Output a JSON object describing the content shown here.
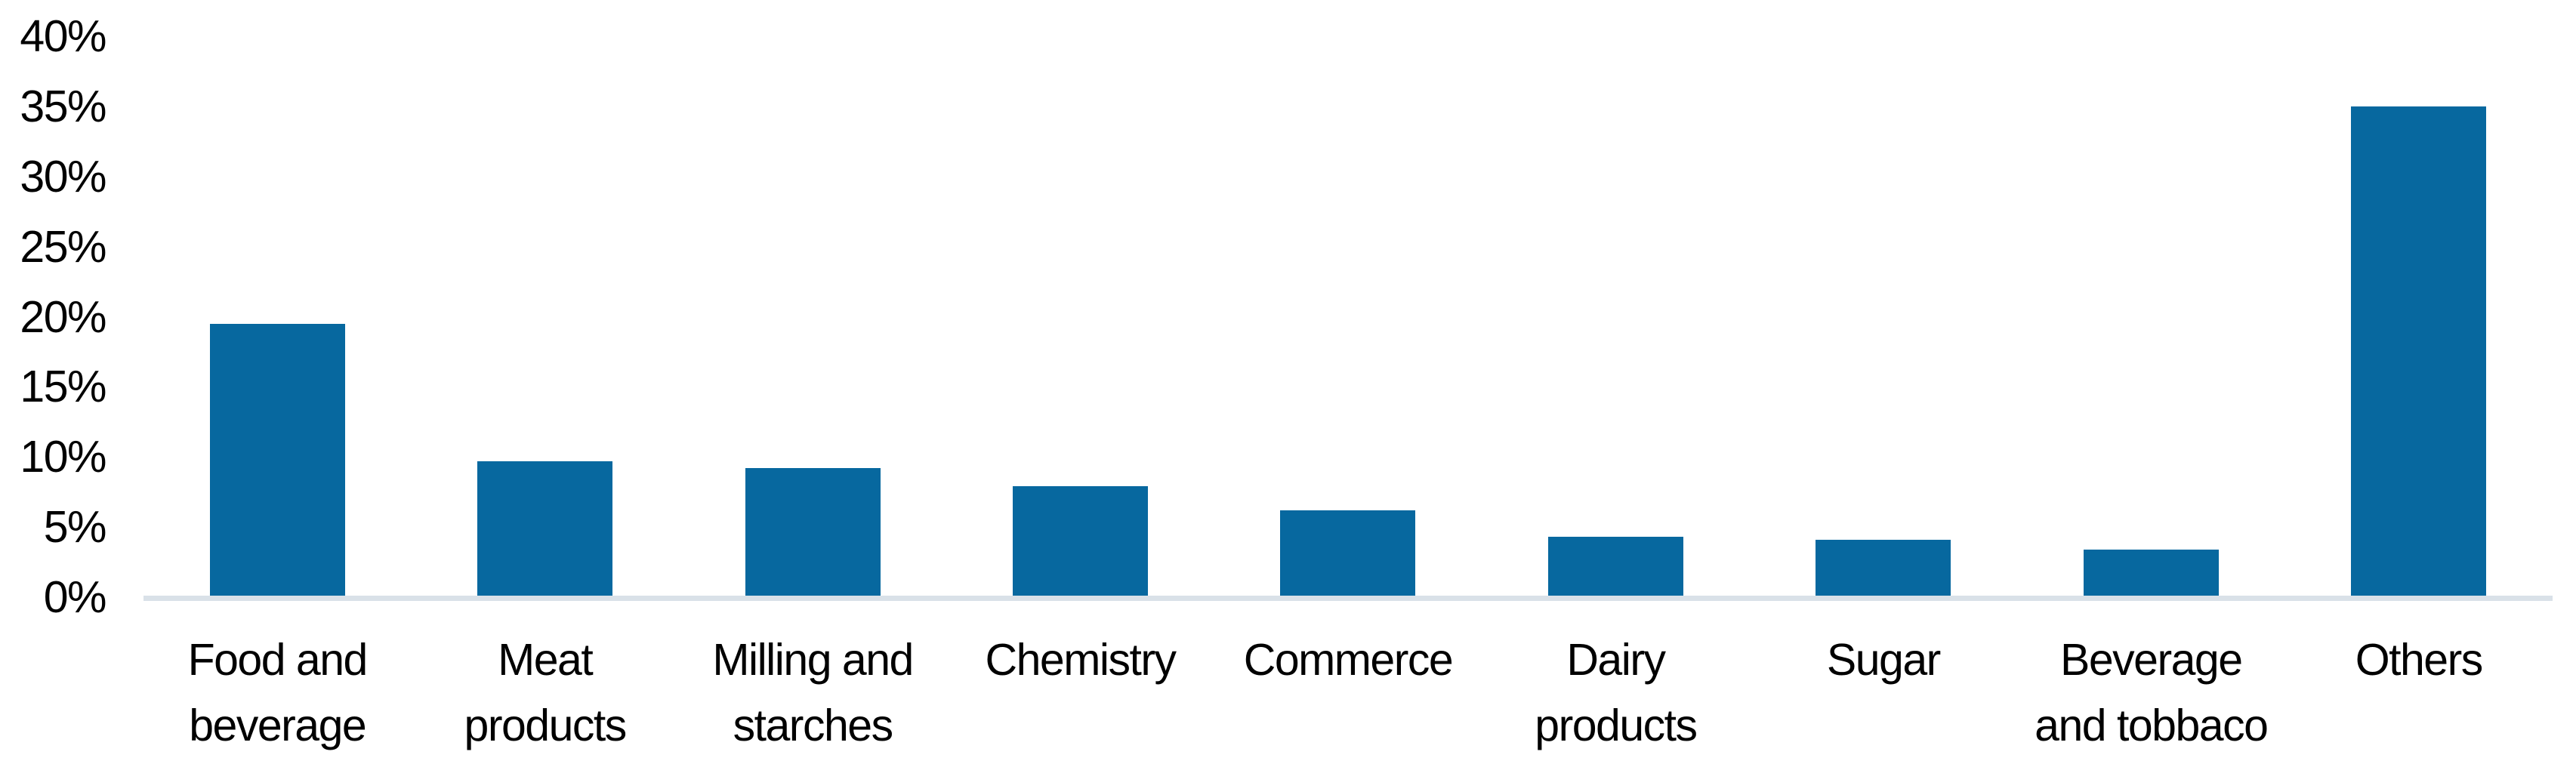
{
  "chart_data": {
    "type": "bar",
    "title": "",
    "xlabel": "",
    "ylabel": "",
    "unit": "%",
    "categories": [
      "Food and beverage",
      "Meat products",
      "Milling and starches",
      "Chemistry",
      "Commerce",
      "Dairy products",
      "Sugar",
      "Beverage and tobbaco",
      "Others"
    ],
    "category_lines": [
      [
        "Food and",
        "beverage"
      ],
      [
        "Meat",
        "products"
      ],
      [
        "Milling and",
        "starches"
      ],
      [
        "Chemistry"
      ],
      [
        "Commerce"
      ],
      [
        "Dairy",
        "products"
      ],
      [
        "Sugar"
      ],
      [
        "Beverage",
        "and tobbaco"
      ],
      [
        "Others"
      ]
    ],
    "values": [
      19.5,
      9.7,
      9.2,
      7.9,
      6.2,
      4.3,
      4.1,
      3.4,
      35.0
    ],
    "ylim": [
      0,
      40
    ],
    "yticks": [
      "0%",
      "5%",
      "10%",
      "15%",
      "20%",
      "25%",
      "30%",
      "35%",
      "40%"
    ],
    "ytick_values": [
      0,
      5,
      10,
      15,
      20,
      25,
      30,
      35,
      40
    ],
    "grid": false,
    "legend": "none",
    "colors": {
      "bar": "#07689F",
      "axis_line": "#D9E1E8",
      "text": "#000000"
    }
  }
}
